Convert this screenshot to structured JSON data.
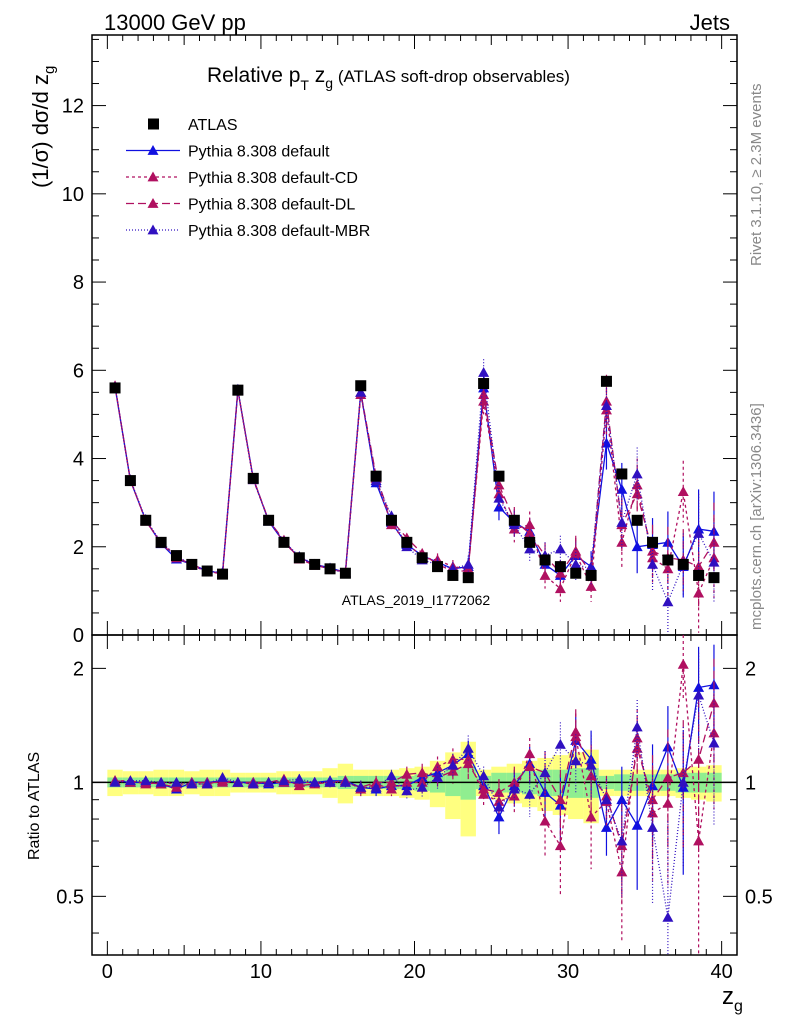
{
  "header": {
    "left": "13000 GeV pp",
    "right": "Jets"
  },
  "side_labels": {
    "rivet": "Rivet 3.1.10, ≥ 2.3M events",
    "mcplots": "mcplots.cern.ch [arXiv:1306.3436]"
  },
  "watermark": "ATLAS_2019_I1772062",
  "chart_data": [
    {
      "type": "scatter",
      "title": "Relative p_T z_g (ATLAS soft-drop observables)",
      "title_parts": {
        "main": "Relative p",
        "sub1": "T",
        "mid": " z",
        "sub2": "g",
        "rest": " (ATLAS soft-drop observables)"
      },
      "ylabel": "(1/σ) dσ/d z_g",
      "ylabel_parts": {
        "main": "(1/σ) dσ/d z",
        "sub": "g"
      },
      "xlim": [
        -1,
        41
      ],
      "ylim": [
        0,
        13.6
      ],
      "yticks": [
        0,
        2,
        4,
        6,
        8,
        10,
        12
      ],
      "xticks": [
        0,
        10,
        20,
        30,
        40
      ],
      "legend_position": "top-left",
      "x": [
        0.5,
        1.5,
        2.5,
        3.5,
        4.5,
        5.5,
        6.5,
        7.5,
        8.5,
        9.5,
        10.5,
        11.5,
        12.5,
        13.5,
        14.5,
        15.5,
        16.5,
        17.5,
        18.5,
        19.5,
        20.5,
        21.5,
        22.5,
        23.5,
        24.5,
        25.5,
        26.5,
        27.5,
        28.5,
        29.5,
        30.5,
        31.5,
        32.5,
        33.5,
        34.5,
        35.5,
        36.5,
        37.5,
        38.5,
        39.5
      ],
      "series": [
        {
          "name": "ATLAS",
          "color": "#000000",
          "marker": "square",
          "values": [
            5.6,
            3.5,
            2.6,
            2.1,
            1.8,
            1.6,
            1.45,
            1.38,
            5.55,
            3.55,
            2.6,
            2.1,
            1.75,
            1.6,
            1.5,
            1.4,
            5.65,
            3.6,
            2.6,
            2.1,
            1.75,
            1.55,
            1.35,
            1.3,
            5.7,
            3.6,
            2.6,
            2.1,
            1.7,
            1.55,
            1.4,
            1.35,
            5.75,
            3.65,
            2.6,
            2.1,
            1.7,
            1.6,
            1.35,
            1.3
          ],
          "errors": [
            0.05,
            0.05,
            0.05,
            0.04,
            0.04,
            0.04,
            0.04,
            0.04,
            0.05,
            0.05,
            0.05,
            0.04,
            0.04,
            0.04,
            0.04,
            0.04,
            0.06,
            0.05,
            0.05,
            0.05,
            0.05,
            0.05,
            0.05,
            0.05,
            0.07,
            0.07,
            0.07,
            0.07,
            0.07,
            0.07,
            0.07,
            0.07,
            0.1,
            0.1,
            0.1,
            0.1,
            0.1,
            0.1,
            0.1,
            0.1
          ]
        },
        {
          "name": "Pythia 8.308 default",
          "color": "#1010e0",
          "marker": "triangle",
          "dash": "",
          "values": [
            5.63,
            3.5,
            2.6,
            2.07,
            1.72,
            1.6,
            1.45,
            1.4,
            5.55,
            3.55,
            2.58,
            2.1,
            1.76,
            1.6,
            1.52,
            1.42,
            5.5,
            3.45,
            2.55,
            2.05,
            1.8,
            1.65,
            1.5,
            1.55,
            5.6,
            2.9,
            2.55,
            2.35,
            1.6,
            1.35,
            1.8,
            1.55,
            4.35,
            3.3,
            2.0,
            2.05,
            2.1,
            1.55,
            2.4,
            2.35
          ],
          "errors": [
            0.05,
            0.05,
            0.04,
            0.04,
            0.04,
            0.04,
            0.04,
            0.04,
            0.05,
            0.05,
            0.05,
            0.05,
            0.05,
            0.05,
            0.05,
            0.05,
            0.1,
            0.1,
            0.1,
            0.1,
            0.1,
            0.15,
            0.15,
            0.2,
            0.3,
            0.3,
            0.3,
            0.3,
            0.3,
            0.3,
            0.35,
            0.35,
            0.6,
            0.6,
            0.6,
            0.6,
            0.7,
            0.7,
            0.9,
            0.9
          ]
        },
        {
          "name": "Pythia 8.308 default-CD",
          "color": "#b01060",
          "marker": "triangle",
          "dash": "3,3",
          "values": [
            5.63,
            3.52,
            2.58,
            2.1,
            1.78,
            1.58,
            1.43,
            1.4,
            5.55,
            3.52,
            2.6,
            2.1,
            1.75,
            1.6,
            1.5,
            1.42,
            5.45,
            3.55,
            2.5,
            2.1,
            1.75,
            1.7,
            1.55,
            1.5,
            5.3,
            3.2,
            2.4,
            2.5,
            1.35,
            1.05,
            1.85,
            1.1,
            5.1,
            2.1,
            3.4,
            1.75,
            1.5,
            3.25,
            0.95,
            1.75
          ],
          "errors": [
            0.05,
            0.05,
            0.04,
            0.04,
            0.04,
            0.04,
            0.04,
            0.04,
            0.05,
            0.05,
            0.05,
            0.05,
            0.05,
            0.05,
            0.05,
            0.05,
            0.1,
            0.1,
            0.1,
            0.1,
            0.1,
            0.15,
            0.15,
            0.2,
            0.3,
            0.3,
            0.3,
            0.3,
            0.3,
            0.3,
            0.35,
            0.35,
            0.6,
            0.6,
            0.6,
            0.6,
            0.7,
            0.7,
            0.9,
            0.9
          ]
        },
        {
          "name": "Pythia 8.308 default-DL",
          "color": "#b01060",
          "marker": "triangle",
          "dash": "8,4",
          "values": [
            5.65,
            3.5,
            2.6,
            2.08,
            1.75,
            1.6,
            1.45,
            1.38,
            5.55,
            3.55,
            2.6,
            2.15,
            1.72,
            1.58,
            1.5,
            1.4,
            5.5,
            3.6,
            2.6,
            2.2,
            1.85,
            1.6,
            1.45,
            1.45,
            5.45,
            3.4,
            2.6,
            2.3,
            1.8,
            1.4,
            1.9,
            1.4,
            5.3,
            2.5,
            3.2,
            1.9,
            1.75,
            1.7,
            1.55,
            2.1
          ],
          "errors": [
            0.05,
            0.05,
            0.04,
            0.04,
            0.04,
            0.04,
            0.04,
            0.04,
            0.05,
            0.05,
            0.05,
            0.05,
            0.05,
            0.05,
            0.05,
            0.05,
            0.1,
            0.1,
            0.1,
            0.1,
            0.1,
            0.15,
            0.15,
            0.2,
            0.3,
            0.3,
            0.3,
            0.3,
            0.3,
            0.3,
            0.35,
            0.35,
            0.6,
            0.6,
            0.6,
            0.6,
            0.7,
            0.7,
            0.9,
            0.9
          ]
        },
        {
          "name": "Pythia 8.308 default-MBR",
          "color": "#3010c0",
          "marker": "triangle",
          "dash": "1,2",
          "values": [
            5.62,
            3.52,
            2.62,
            2.1,
            1.8,
            1.58,
            1.44,
            1.42,
            5.57,
            3.52,
            2.6,
            2.12,
            1.78,
            1.6,
            1.5,
            1.4,
            5.5,
            3.5,
            2.7,
            2.0,
            1.7,
            1.6,
            1.5,
            1.6,
            5.95,
            3.1,
            2.5,
            1.95,
            1.8,
            1.95,
            1.6,
            1.5,
            5.2,
            2.55,
            3.65,
            1.6,
            0.75,
            1.6,
            2.3,
            1.65
          ],
          "errors": [
            0.05,
            0.05,
            0.04,
            0.04,
            0.04,
            0.04,
            0.04,
            0.04,
            0.05,
            0.05,
            0.05,
            0.05,
            0.05,
            0.05,
            0.05,
            0.05,
            0.1,
            0.1,
            0.1,
            0.1,
            0.1,
            0.15,
            0.15,
            0.2,
            0.3,
            0.3,
            0.3,
            0.3,
            0.3,
            0.3,
            0.35,
            0.35,
            0.6,
            0.6,
            0.6,
            0.6,
            0.7,
            0.7,
            0.9,
            0.9
          ]
        }
      ]
    },
    {
      "type": "scatter",
      "ylabel": "Ratio to ATLAS",
      "xlabel": "z_g",
      "xlabel_parts": {
        "main": "z",
        "sub": "g"
      },
      "scale": "log",
      "xlim": [
        -1,
        41
      ],
      "ylim": [
        0.35,
        2.45
      ],
      "yticks": [
        0.5,
        1,
        2
      ],
      "ytick_labels": [
        "0.5",
        "1",
        "2"
      ],
      "xticks": [
        0,
        10,
        20,
        30,
        40
      ],
      "bands": {
        "inner_color": "#90ee90",
        "outer_color": "#ffff80",
        "inner": [
          0.03,
          0.03,
          0.03,
          0.03,
          0.03,
          0.03,
          0.03,
          0.03,
          0.03,
          0.03,
          0.03,
          0.03,
          0.03,
          0.03,
          0.03,
          0.04,
          0.04,
          0.04,
          0.04,
          0.04,
          0.05,
          0.06,
          0.08,
          0.1,
          0.04,
          0.06,
          0.06,
          0.07,
          0.08,
          0.08,
          0.09,
          0.09,
          0.04,
          0.05,
          0.05,
          0.05,
          0.05,
          0.06,
          0.06,
          0.06
        ],
        "outer": [
          0.08,
          0.07,
          0.07,
          0.08,
          0.08,
          0.07,
          0.08,
          0.08,
          0.06,
          0.06,
          0.06,
          0.07,
          0.07,
          0.07,
          0.09,
          0.12,
          0.08,
          0.08,
          0.08,
          0.09,
          0.1,
          0.14,
          0.2,
          0.28,
          0.08,
          0.1,
          0.12,
          0.14,
          0.16,
          0.18,
          0.2,
          0.22,
          0.08,
          0.08,
          0.08,
          0.08,
          0.08,
          0.09,
          0.1,
          0.11
        ]
      },
      "series": [
        {
          "name": "Pythia 8.308 default",
          "color": "#1010e0",
          "marker": "triangle",
          "dash": "",
          "values": [
            1.01,
            1.0,
            1.0,
            0.99,
            0.96,
            1.0,
            1.0,
            1.01,
            1.0,
            1.0,
            0.99,
            1.0,
            1.0,
            1.0,
            1.01,
            1.01,
            0.97,
            0.96,
            0.98,
            0.98,
            1.03,
            1.06,
            1.11,
            1.19,
            0.98,
            0.81,
            0.98,
            1.12,
            0.94,
            0.87,
            1.29,
            1.15,
            0.76,
            0.9,
            0.77,
            0.98,
            1.24,
            0.97,
            1.78,
            1.81
          ],
          "errors": [
            0.02,
            0.02,
            0.02,
            0.02,
            0.02,
            0.02,
            0.02,
            0.02,
            0.02,
            0.02,
            0.02,
            0.02,
            0.03,
            0.03,
            0.03,
            0.03,
            0.04,
            0.04,
            0.04,
            0.05,
            0.06,
            0.07,
            0.08,
            0.1,
            0.06,
            0.08,
            0.1,
            0.12,
            0.15,
            0.18,
            0.2,
            0.22,
            0.12,
            0.2,
            0.25,
            0.28,
            0.35,
            0.4,
            0.5,
            0.5
          ]
        },
        {
          "name": "Pythia 8.308 default-CD",
          "color": "#b01060",
          "marker": "triangle",
          "dash": "3,3",
          "values": [
            1.01,
            1.01,
            0.99,
            1.0,
            0.99,
            0.99,
            0.99,
            1.01,
            1.0,
            0.99,
            1.0,
            1.0,
            1.0,
            1.0,
            1.0,
            1.01,
            0.96,
            0.99,
            0.96,
            1.0,
            1.0,
            1.1,
            1.15,
            1.15,
            0.93,
            0.89,
            0.92,
            1.19,
            0.79,
            0.68,
            1.32,
            0.81,
            0.89,
            0.58,
            1.31,
            0.83,
            0.88,
            2.05,
            0.7,
            1.35
          ],
          "errors": [
            0.02,
            0.02,
            0.02,
            0.02,
            0.02,
            0.02,
            0.02,
            0.02,
            0.02,
            0.02,
            0.02,
            0.02,
            0.03,
            0.03,
            0.03,
            0.03,
            0.04,
            0.04,
            0.04,
            0.05,
            0.06,
            0.07,
            0.08,
            0.1,
            0.06,
            0.08,
            0.1,
            0.12,
            0.15,
            0.18,
            0.2,
            0.22,
            0.12,
            0.2,
            0.25,
            0.28,
            0.35,
            0.4,
            0.5,
            0.5
          ]
        },
        {
          "name": "Pythia 8.308 default-DL",
          "color": "#b01060",
          "marker": "triangle",
          "dash": "8,4",
          "values": [
            1.01,
            1.0,
            1.0,
            0.99,
            0.97,
            1.0,
            1.0,
            1.0,
            1.0,
            1.0,
            1.0,
            1.02,
            0.98,
            0.99,
            1.0,
            1.0,
            0.97,
            1.0,
            1.0,
            1.05,
            1.06,
            1.03,
            1.07,
            1.12,
            0.96,
            0.94,
            1.0,
            1.1,
            1.06,
            0.9,
            1.36,
            1.04,
            0.92,
            0.68,
            1.23,
            0.9,
            1.03,
            1.06,
            1.15,
            1.62
          ],
          "errors": [
            0.02,
            0.02,
            0.02,
            0.02,
            0.02,
            0.02,
            0.02,
            0.02,
            0.02,
            0.02,
            0.02,
            0.02,
            0.03,
            0.03,
            0.03,
            0.03,
            0.04,
            0.04,
            0.04,
            0.05,
            0.06,
            0.07,
            0.08,
            0.1,
            0.06,
            0.08,
            0.1,
            0.12,
            0.15,
            0.18,
            0.2,
            0.22,
            0.12,
            0.2,
            0.25,
            0.28,
            0.35,
            0.4,
            0.5,
            0.5
          ]
        },
        {
          "name": "Pythia 8.308 default-MBR",
          "color": "#3010c0",
          "marker": "triangle",
          "dash": "1,2",
          "values": [
            1.0,
            1.01,
            1.01,
            1.0,
            1.0,
            0.99,
            0.99,
            1.03,
            1.0,
            0.99,
            1.0,
            1.01,
            1.02,
            1.0,
            1.0,
            1.0,
            0.97,
            0.97,
            1.04,
            0.95,
            0.97,
            1.03,
            1.11,
            1.23,
            1.04,
            0.86,
            0.96,
            0.93,
            1.06,
            1.26,
            1.14,
            1.11,
            0.9,
            0.7,
            1.4,
            0.76,
            0.44,
            1.0,
            1.7,
            1.27
          ],
          "errors": [
            0.02,
            0.02,
            0.02,
            0.02,
            0.02,
            0.02,
            0.02,
            0.02,
            0.02,
            0.02,
            0.02,
            0.02,
            0.03,
            0.03,
            0.03,
            0.03,
            0.04,
            0.04,
            0.04,
            0.05,
            0.06,
            0.07,
            0.08,
            0.1,
            0.06,
            0.08,
            0.1,
            0.12,
            0.15,
            0.18,
            0.2,
            0.22,
            0.12,
            0.2,
            0.25,
            0.28,
            0.35,
            0.4,
            0.5,
            0.5
          ]
        }
      ]
    }
  ]
}
